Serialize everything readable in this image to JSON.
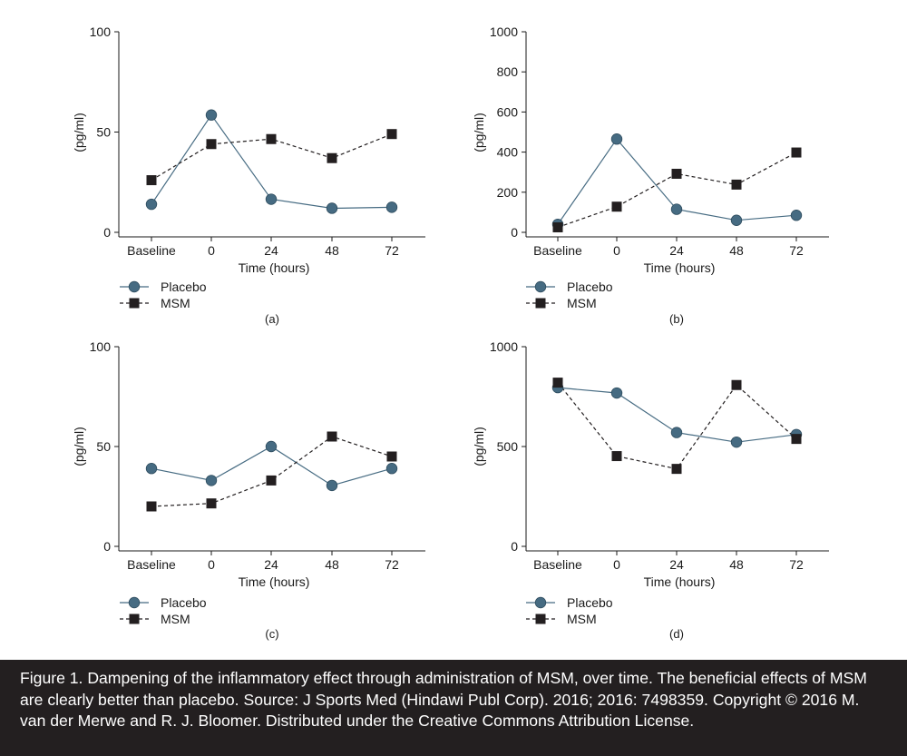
{
  "chart_data": [
    {
      "type": "line",
      "panel_label": "(a)",
      "categories": [
        "Baseline",
        "0",
        "24",
        "48",
        "72"
      ],
      "xlabel": "Time (hours)",
      "ylabel": "(pg/ml)",
      "ylim": [
        0,
        100
      ],
      "yticks": [
        0,
        50,
        100
      ],
      "grid": false,
      "legend_position": "bottom-left",
      "series": [
        {
          "name": "Placebo",
          "values": [
            14,
            58.5,
            16.5,
            12,
            12.5
          ],
          "color": "#466b82",
          "marker": "circle",
          "dashed": false
        },
        {
          "name": "MSM",
          "values": [
            26,
            44,
            46.5,
            37,
            49
          ],
          "color": "#231f20",
          "marker": "square",
          "dashed": true
        }
      ]
    },
    {
      "type": "line",
      "panel_label": "(b)",
      "categories": [
        "Baseline",
        "0",
        "24",
        "48",
        "72"
      ],
      "xlabel": "Time (hours)",
      "ylabel": "(pg/ml)",
      "ylim": [
        0,
        1000
      ],
      "yticks": [
        0,
        200,
        400,
        600,
        800,
        1000
      ],
      "grid": false,
      "legend_position": "bottom-left",
      "series": [
        {
          "name": "Placebo",
          "values": [
            40,
            465,
            115,
            60,
            85
          ],
          "color": "#466b82",
          "marker": "circle",
          "dashed": false
        },
        {
          "name": "MSM",
          "values": [
            25,
            128,
            292,
            238,
            398
          ],
          "color": "#231f20",
          "marker": "square",
          "dashed": true
        }
      ]
    },
    {
      "type": "line",
      "panel_label": "(c)",
      "categories": [
        "Baseline",
        "0",
        "24",
        "48",
        "72"
      ],
      "xlabel": "Time (hours)",
      "ylabel": "(pg/ml)",
      "ylim": [
        0,
        100
      ],
      "yticks": [
        0,
        50,
        100
      ],
      "grid": false,
      "legend_position": "bottom-left",
      "series": [
        {
          "name": "Placebo",
          "values": [
            39,
            33,
            50,
            30.5,
            39
          ],
          "color": "#466b82",
          "marker": "circle",
          "dashed": false
        },
        {
          "name": "MSM",
          "values": [
            20,
            21.5,
            33,
            55,
            45
          ],
          "color": "#231f20",
          "marker": "square",
          "dashed": true
        }
      ]
    },
    {
      "type": "line",
      "panel_label": "(d)",
      "categories": [
        "Baseline",
        "0",
        "24",
        "48",
        "72"
      ],
      "xlabel": "Time (hours)",
      "ylabel": "(pg/ml)",
      "ylim": [
        0,
        1000
      ],
      "yticks": [
        0,
        500,
        1000
      ],
      "grid": false,
      "legend_position": "bottom-left",
      "series": [
        {
          "name": "Placebo",
          "values": [
            795,
            768,
            570,
            522,
            560
          ],
          "color": "#466b82",
          "marker": "circle",
          "dashed": false
        },
        {
          "name": "MSM",
          "values": [
            820,
            452,
            388,
            808,
            538
          ],
          "color": "#231f20",
          "marker": "square",
          "dashed": true
        }
      ]
    }
  ],
  "caption": {
    "text": "Figure 1. Dampening of the inflammatory effect through administration of MSM, over time. The beneficial effects of MSM are clearly better than placebo. Source: J Sports Med (Hindawi Publ Corp). 2016; 2016: 7498359. Copyright © 2016 M. van der Merwe and R. J. Bloomer. Distributed under the Creative Commons Attribution License."
  },
  "colors": {
    "caption_background": "#231f20",
    "caption_text": "#ffffff",
    "placebo": "#466b82",
    "msm": "#231f20"
  }
}
